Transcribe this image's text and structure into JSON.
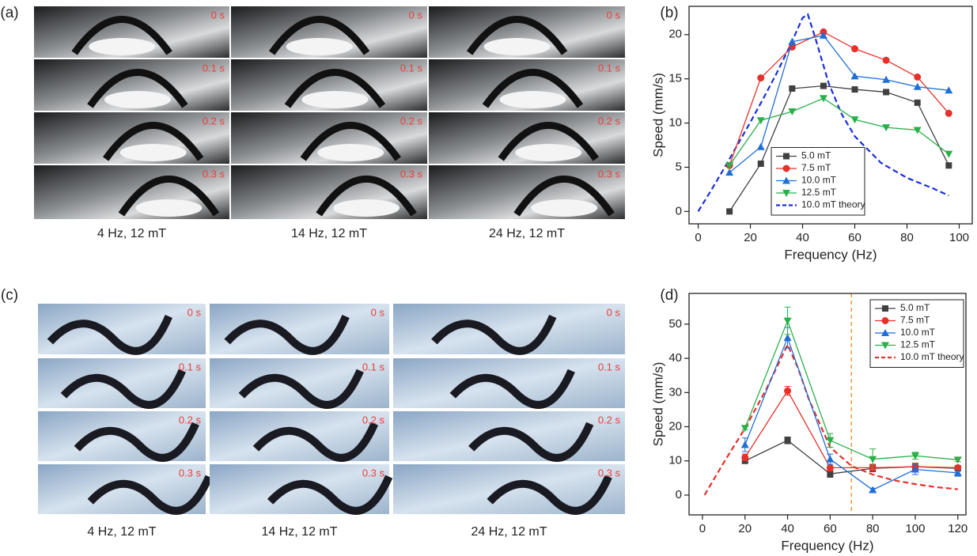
{
  "figure": {
    "panels": [
      {
        "label": "(a)",
        "columns": [
          {
            "caption": "4 Hz, 12 mT",
            "times": [
              "0 s",
              "0.1 s",
              "0.2 s",
              "0.3 s"
            ]
          },
          {
            "caption": "14 Hz, 12 mT",
            "times": [
              "0 s",
              "0.1 s",
              "0.2 s",
              "0.3 s"
            ]
          },
          {
            "caption": "24 Hz, 12 mT",
            "times": [
              "0 s",
              "0.1 s",
              "0.2 s",
              "0.3 s"
            ]
          }
        ]
      },
      {
        "label": "(c)",
        "columns": [
          {
            "caption": "4 Hz, 12 mT",
            "times": [
              "0 s",
              "0.1 s",
              "0.2 s",
              "0.3 s"
            ]
          },
          {
            "caption": "14 Hz, 12 mT",
            "times": [
              "0 s",
              "0.1 s",
              "0.2 s",
              "0.3 s"
            ]
          },
          {
            "caption": "24 Hz, 12 mT",
            "times": [
              "0 s",
              "0.1 s",
              "0.2 s",
              "0.3 s"
            ]
          }
        ]
      }
    ]
  },
  "chart_data": [
    {
      "type": "line",
      "panel_label": "(b)",
      "x_label": "Frequency (Hz)",
      "y_label": "Speed (mm/s)",
      "xlim": [
        -3.5,
        105
      ],
      "ylim": [
        -1.4,
        23.2
      ],
      "xticks": [
        0,
        20,
        40,
        60,
        80,
        100
      ],
      "yticks": [
        0,
        5,
        10,
        15,
        20
      ],
      "legend": "lower center",
      "series": [
        {
          "name": "5.0 mT",
          "color": "#404040",
          "marker": "square",
          "x": [
            12,
            24,
            36,
            48,
            60,
            72,
            84,
            96
          ],
          "values": [
            0,
            5.4,
            13.9,
            14.2,
            13.8,
            13.5,
            12.3,
            5.2
          ]
        },
        {
          "name": "7.5 mT",
          "color": "#e8302a",
          "marker": "circle",
          "x": [
            12,
            24,
            36,
            48,
            60,
            72,
            84,
            96
          ],
          "values": [
            5.2,
            15.1,
            18.6,
            20.3,
            18.4,
            17.1,
            15.2,
            11.1
          ]
        },
        {
          "name": "10.0 mT",
          "color": "#1f6fd6",
          "marker": "triangle-up",
          "x": [
            12,
            24,
            36,
            48,
            60,
            72,
            84,
            96
          ],
          "values": [
            4.4,
            7.3,
            19.2,
            19.9,
            15.3,
            14.9,
            14.1,
            13.7
          ]
        },
        {
          "name": "12.5 mT",
          "color": "#2ab04a",
          "marker": "triangle-down",
          "x": [
            12,
            24,
            36,
            48,
            60,
            72,
            84,
            96
          ],
          "values": [
            5.2,
            10.3,
            11.3,
            12.8,
            10.4,
            9.5,
            9.2,
            6.5
          ]
        },
        {
          "name": "10.0 mT theory",
          "color": "#1a2fd8",
          "style": "dashed",
          "x": [
            0,
            5,
            10,
            15,
            20,
            25,
            30,
            35,
            40,
            42,
            45,
            50,
            55,
            60,
            70,
            80,
            90,
            96
          ],
          "values": [
            0,
            2.4,
            4.9,
            7.5,
            10.1,
            12.8,
            15.6,
            18.6,
            21.9,
            22.3,
            19.5,
            14.5,
            11,
            8.5,
            5.5,
            3.8,
            2.6,
            1.8
          ]
        }
      ]
    },
    {
      "type": "line",
      "panel_label": "(d)",
      "x_label": "Frequency (Hz)",
      "y_label": "Speed (mm/s)",
      "xlim": [
        -6.3,
        123.8
      ],
      "ylim": [
        -5.8,
        59
      ],
      "xticks": [
        0,
        20,
        40,
        60,
        80,
        100,
        120
      ],
      "yticks": [
        0,
        10,
        20,
        30,
        40,
        50
      ],
      "legend": "upper right",
      "vline": 70,
      "vline_color": "#e88a2a",
      "series": [
        {
          "name": "5.0 mT",
          "color": "#404040",
          "marker": "square",
          "x": [
            20,
            40,
            60,
            80,
            100,
            120
          ],
          "values": [
            10,
            16,
            6.2,
            7.8,
            8.3,
            7.8
          ],
          "errors": [
            0.7,
            1,
            1,
            1,
            1,
            0.5
          ]
        },
        {
          "name": "7.5 mT",
          "color": "#e8302a",
          "marker": "circle",
          "x": [
            20,
            40,
            60,
            80,
            100,
            120
          ],
          "values": [
            11,
            30.5,
            8,
            8,
            8.3,
            8
          ],
          "errors": [
            1,
            1.3,
            1,
            1,
            1,
            0.5
          ]
        },
        {
          "name": "10.0 mT",
          "color": "#1f6fd6",
          "marker": "triangle-up",
          "x": [
            20,
            40,
            60,
            80,
            100,
            120
          ],
          "values": [
            14.7,
            46,
            10.5,
            1.5,
            7.5,
            6.5
          ],
          "errors": [
            2,
            3,
            1.5,
            0.5,
            1.5,
            1
          ]
        },
        {
          "name": "12.5 mT",
          "color": "#2ab04a",
          "marker": "triangle-down",
          "x": [
            20,
            40,
            60,
            80,
            100,
            120
          ],
          "values": [
            19.6,
            51,
            16,
            10.5,
            11.5,
            10.3
          ],
          "errors": [
            0.5,
            4,
            2,
            3,
            1,
            0.5
          ]
        },
        {
          "name": "10.0 mT theory",
          "color": "#e8302a",
          "style": "dashed",
          "x": [
            1,
            10,
            20,
            30,
            40,
            45,
            50,
            60,
            70,
            80,
            90,
            100,
            110,
            120
          ],
          "values": [
            0,
            9.5,
            19.5,
            31,
            44,
            37,
            28,
            14,
            8.5,
            6,
            4.3,
            3.2,
            2.3,
            1.7
          ]
        }
      ]
    }
  ]
}
